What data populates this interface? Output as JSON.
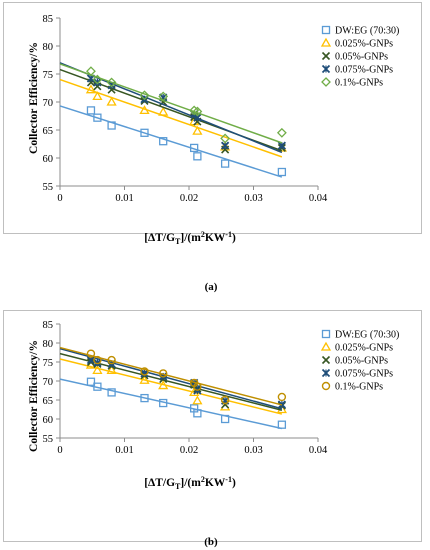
{
  "chart_data": [
    {
      "type": "scatter",
      "panel_label": "(a)",
      "ylabel": "Collector Efficiency/%",
      "xlabel_main": "[ΔT/G",
      "xlabel_sub": "T",
      "xlabel_mid": "]/(m",
      "xlabel_sup": "2",
      "xlabel_tail": "KW",
      "xlabel_sup2": "-1",
      "xlabel_end": ")",
      "xlim": [
        0,
        0.04
      ],
      "ylim": [
        55,
        85
      ],
      "x_ticks": [
        "0",
        "0.01",
        "0.02",
        "0.03",
        "0.04"
      ],
      "y_ticks": [
        "55",
        "60",
        "65",
        "70",
        "75",
        "80",
        "85"
      ],
      "x_tick_values": [
        0,
        0.01,
        0.02,
        0.03,
        0.04
      ],
      "y_tick_values": [
        55,
        60,
        65,
        70,
        75,
        80,
        85
      ],
      "grid": false,
      "legend_position": "top-right",
      "series": [
        {
          "name": "DW:EG (70:30)",
          "color": "#5b9bd5",
          "marker": "square",
          "x": [
            0.0048,
            0.0058,
            0.008,
            0.0131,
            0.016,
            0.0208,
            0.0213,
            0.0256,
            0.0344
          ],
          "y": [
            68.5,
            67.2,
            65.8,
            64.5,
            63.0,
            61.8,
            60.3,
            59.0,
            57.5
          ],
          "fit": [
            [
              0,
              69.3
            ],
            [
              0.0344,
              56.6
            ]
          ]
        },
        {
          "name": "0.025%-GNPs",
          "color": "#ffc000",
          "marker": "triangle",
          "x": [
            0.0048,
            0.0058,
            0.008,
            0.0131,
            0.016,
            0.0208,
            0.0213,
            0.0256,
            0.0344
          ],
          "y": [
            72.2,
            71.0,
            70.0,
            68.5,
            68.2,
            66.5,
            64.8,
            62.0,
            61.8
          ],
          "fit": [
            [
              0,
              74.0
            ],
            [
              0.0344,
              60.2
            ]
          ]
        },
        {
          "name": "0.05%-GNPs",
          "color": "#375623",
          "marker": "x",
          "x": [
            0.0048,
            0.0058,
            0.008,
            0.0131,
            0.016,
            0.0208,
            0.0213,
            0.0256,
            0.0344
          ],
          "y": [
            73.5,
            72.8,
            72.2,
            70.2,
            70.0,
            67.3,
            66.5,
            61.5,
            61.8
          ],
          "fit": [
            [
              0,
              75.8
            ],
            [
              0.0344,
              61.3
            ]
          ]
        },
        {
          "name": "0.075%-GNPs",
          "color": "#1f4e79",
          "marker": "star",
          "x": [
            0.0048,
            0.0058,
            0.008,
            0.0131,
            0.016,
            0.0208,
            0.0213,
            0.0256,
            0.0344
          ],
          "y": [
            74.2,
            73.5,
            73.0,
            70.5,
            70.8,
            67.8,
            67.2,
            62.2,
            62.2
          ],
          "fit": [
            [
              0,
              77.0
            ],
            [
              0.0344,
              61.0
            ]
          ]
        },
        {
          "name": "0.1%-GNPs",
          "color": "#70ad47",
          "marker": "diamond",
          "x": [
            0.0048,
            0.0058,
            0.008,
            0.0131,
            0.016,
            0.0208,
            0.0213,
            0.0256,
            0.0344
          ],
          "y": [
            75.5,
            74.0,
            73.5,
            71.2,
            71.0,
            68.5,
            68.3,
            63.5,
            64.5
          ],
          "fit": [
            [
              0,
              76.8
            ],
            [
              0.0344,
              62.7
            ]
          ]
        }
      ]
    },
    {
      "type": "scatter",
      "panel_label": "(b)",
      "ylabel": "Collector Efficiency/%",
      "xlabel_main": "[ΔT/G",
      "xlabel_sub": "T",
      "xlabel_mid": "]/(m",
      "xlabel_sup": "2",
      "xlabel_tail": "KW",
      "xlabel_sup2": "-1",
      "xlabel_end": ")",
      "xlim": [
        0,
        0.04
      ],
      "ylim": [
        55,
        85
      ],
      "x_ticks": [
        "0",
        "0.01",
        "0.02",
        "0.03",
        "0.04"
      ],
      "y_ticks": [
        "55",
        "60",
        "65",
        "70",
        "75",
        "80",
        "85"
      ],
      "x_tick_values": [
        0,
        0.01,
        0.02,
        0.03,
        0.04
      ],
      "y_tick_values": [
        55,
        60,
        65,
        70,
        75,
        80,
        85
      ],
      "grid": false,
      "legend_position": "top-right",
      "series": [
        {
          "name": "DW:EG (70:30)",
          "color": "#5b9bd5",
          "marker": "square",
          "x": [
            0.0048,
            0.0058,
            0.008,
            0.0131,
            0.016,
            0.0208,
            0.0213,
            0.0256,
            0.0344
          ],
          "y": [
            69.8,
            68.5,
            67.0,
            65.5,
            64.2,
            62.8,
            61.5,
            60.0,
            58.5
          ],
          "fit": [
            [
              0,
              70.5
            ],
            [
              0.0344,
              57.5
            ]
          ]
        },
        {
          "name": "0.025%-GNPs",
          "color": "#ffc000",
          "marker": "triangle",
          "x": [
            0.0048,
            0.0058,
            0.008,
            0.0131,
            0.016,
            0.0208,
            0.0213,
            0.0256,
            0.0344
          ],
          "y": [
            74.2,
            72.8,
            72.8,
            70.2,
            68.8,
            67.0,
            64.8,
            63.2,
            62.5
          ],
          "fit": [
            [
              0,
              75.8
            ],
            [
              0.0344,
              61.3
            ]
          ]
        },
        {
          "name": "0.05%-GNPs",
          "color": "#375623",
          "marker": "x",
          "x": [
            0.0048,
            0.0058,
            0.008,
            0.0131,
            0.016,
            0.0208,
            0.0213,
            0.0256,
            0.0344
          ],
          "y": [
            75.0,
            74.5,
            74.0,
            71.5,
            70.5,
            69.0,
            68.0,
            63.8,
            63.5
          ],
          "fit": [
            [
              0,
              77.2
            ],
            [
              0.0344,
              62.3
            ]
          ]
        },
        {
          "name": "0.075%-GNPs",
          "color": "#1f4e79",
          "marker": "star",
          "x": [
            0.0048,
            0.0058,
            0.008,
            0.0131,
            0.016,
            0.0208,
            0.0213,
            0.0256,
            0.0344
          ],
          "y": [
            75.5,
            74.8,
            74.5,
            72.0,
            71.2,
            69.5,
            67.5,
            64.8,
            63.8
          ],
          "fit": [
            [
              0,
              78.5
            ],
            [
              0.0344,
              62.7
            ]
          ]
        },
        {
          "name": "0.1%-GNPs",
          "color": "#bf8f00",
          "marker": "circle",
          "x": [
            0.0048,
            0.0058,
            0.008,
            0.0131,
            0.016,
            0.0208,
            0.0213,
            0.0256,
            0.0344
          ],
          "y": [
            77.2,
            75.5,
            75.5,
            72.5,
            72.0,
            69.5,
            68.5,
            65.0,
            65.8
          ],
          "fit": [
            [
              0,
              78.8
            ],
            [
              0.0344,
              63.7
            ]
          ]
        }
      ]
    }
  ]
}
